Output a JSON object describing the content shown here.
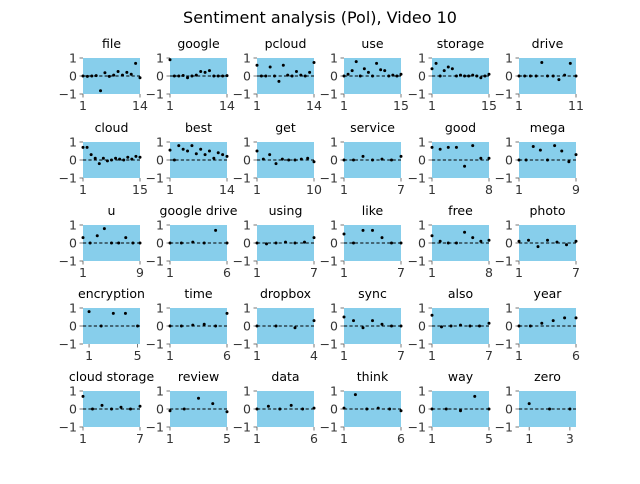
{
  "chart_data": {
    "type": "scatter",
    "title": "Sentiment analysis (Pol), Video 10",
    "grid": false,
    "facecolor": "#87ceeb",
    "point_color": "#000000",
    "reference_line": 0,
    "ylim": [
      -1,
      1
    ],
    "yticks": [
      -1,
      0,
      1
    ],
    "panels": [
      {
        "title": "file",
        "xlim": [
          1,
          14
        ],
        "xticks": [
          1,
          14
        ],
        "y": [
          0.0,
          -0.02,
          0.0,
          0.02,
          -0.82,
          0.18,
          -0.02,
          0.05,
          0.25,
          0.05,
          0.2,
          0.1,
          0.7,
          -0.1
        ]
      },
      {
        "title": "google",
        "xlim": [
          1,
          14
        ],
        "xticks": [
          1,
          14
        ],
        "y": [
          0.9,
          0.0,
          0.0,
          0.03,
          -0.1,
          0.0,
          0.05,
          0.25,
          0.2,
          0.3,
          0.0,
          0.0,
          0.0,
          0.02
        ]
      },
      {
        "title": "pcloud",
        "xlim": [
          1,
          14
        ],
        "xticks": [
          1,
          14
        ],
        "y": [
          0.6,
          0.0,
          0.0,
          0.5,
          0.0,
          -0.3,
          0.6,
          0.05,
          0.0,
          0.25,
          0.05,
          0.0,
          0.2,
          0.75
        ]
      },
      {
        "title": "use",
        "xlim": [
          1,
          15
        ],
        "xticks": [
          1,
          15
        ],
        "y": [
          0.0,
          0.1,
          0.3,
          0.8,
          0.0,
          0.4,
          0.2,
          0.0,
          0.7,
          0.35,
          0.3,
          0.0,
          0.05,
          0.0,
          0.1
        ]
      },
      {
        "title": "storage",
        "xlim": [
          1,
          15
        ],
        "xticks": [
          1,
          15
        ],
        "y": [
          0.4,
          0.7,
          0.0,
          0.3,
          0.5,
          0.4,
          0.0,
          0.05,
          0.0,
          0.0,
          0.05,
          0.0,
          -0.1,
          0.0,
          0.1
        ]
      },
      {
        "title": "drive",
        "xlim": [
          1,
          11
        ],
        "xticks": [
          1,
          11
        ],
        "y": [
          0.0,
          0.0,
          0.0,
          0.0,
          0.75,
          0.0,
          0.0,
          -0.2,
          0.05,
          0.7,
          0.0
        ]
      },
      {
        "title": "cloud",
        "xlim": [
          1,
          15
        ],
        "xticks": [
          1,
          15
        ],
        "y": [
          0.7,
          0.7,
          0.3,
          0.1,
          -0.2,
          0.1,
          -0.05,
          0.0,
          0.1,
          0.05,
          0.0,
          0.15,
          0.05,
          0.2,
          0.15
        ]
      },
      {
        "title": "best",
        "xlim": [
          1,
          14
        ],
        "xticks": [
          1,
          14
        ],
        "y": [
          0.55,
          0.0,
          0.8,
          0.6,
          0.5,
          0.8,
          0.35,
          0.6,
          0.3,
          0.5,
          0.1,
          0.4,
          0.3,
          0.2
        ]
      },
      {
        "title": "get",
        "xlim": [
          1,
          10
        ],
        "xticks": [
          1,
          10
        ],
        "y": [
          0.5,
          0.05,
          0.3,
          -0.2,
          0.05,
          0.0,
          0.0,
          0.05,
          0.1,
          -0.1
        ]
      },
      {
        "title": "service",
        "xlim": [
          1,
          7
        ],
        "xticks": [
          1,
          7
        ],
        "y": [
          0.0,
          0.0,
          0.2,
          0.0,
          0.05,
          0.0,
          0.2
        ]
      },
      {
        "title": "good",
        "xlim": [
          1,
          8
        ],
        "xticks": [
          1,
          8
        ],
        "y": [
          0.7,
          0.6,
          0.7,
          0.7,
          -0.35,
          0.8,
          0.1,
          0.1
        ]
      },
      {
        "title": "mega",
        "xlim": [
          1,
          9
        ],
        "xticks": [
          1,
          9
        ],
        "y": [
          0.0,
          0.0,
          0.75,
          0.55,
          0.0,
          0.8,
          0.5,
          -0.1,
          0.3
        ]
      },
      {
        "title": "u",
        "xlim": [
          1,
          9
        ],
        "xticks": [
          1,
          9
        ],
        "y": [
          0.3,
          0.0,
          0.4,
          0.8,
          0.0,
          0.0,
          0.3,
          0.0,
          0.0
        ]
      },
      {
        "title": "google drive",
        "xlim": [
          1,
          6
        ],
        "xticks": [
          1,
          6
        ],
        "y": [
          0.0,
          0.0,
          0.05,
          0.0,
          0.7,
          0.0
        ]
      },
      {
        "title": "using",
        "xlim": [
          1,
          7
        ],
        "xticks": [
          1,
          7
        ],
        "y": [
          0.0,
          -0.05,
          0.0,
          0.05,
          0.0,
          0.05,
          0.3
        ]
      },
      {
        "title": "like",
        "xlim": [
          1,
          7
        ],
        "xticks": [
          1,
          7
        ],
        "y": [
          0.5,
          0.0,
          0.7,
          0.7,
          0.3,
          0.0,
          0.0
        ]
      },
      {
        "title": "free",
        "xlim": [
          1,
          8
        ],
        "xticks": [
          1,
          8
        ],
        "y": [
          0.4,
          0.1,
          0.0,
          0.0,
          0.6,
          0.3,
          0.1,
          0.15
        ]
      },
      {
        "title": "photo",
        "xlim": [
          1,
          7
        ],
        "xticks": [
          1,
          7
        ],
        "y": [
          0.1,
          0.15,
          -0.2,
          0.15,
          0.05,
          -0.1,
          0.1
        ]
      },
      {
        "title": "encryption",
        "xlim": [
          0.5,
          5.2
        ],
        "xticks": [
          1,
          5
        ],
        "y": [
          0.8,
          0.0,
          0.7,
          0.7,
          0.0
        ]
      },
      {
        "title": "time",
        "xlim": [
          1,
          6
        ],
        "xticks": [
          1,
          6
        ],
        "y": [
          0.0,
          0.0,
          0.05,
          0.1,
          0.0,
          0.7
        ]
      },
      {
        "title": "dropbox",
        "xlim": [
          1,
          4
        ],
        "xticks": [
          1,
          4
        ],
        "y": [
          0.0,
          0.0,
          -0.1,
          0.3
        ]
      },
      {
        "title": "sync",
        "xlim": [
          1,
          7
        ],
        "xticks": [
          1,
          7
        ],
        "y": [
          0.5,
          0.3,
          -0.1,
          0.3,
          0.1,
          0.0,
          0.0
        ]
      },
      {
        "title": "also",
        "xlim": [
          1,
          7
        ],
        "xticks": [
          1,
          7
        ],
        "y": [
          0.6,
          -0.05,
          0.0,
          0.05,
          0.0,
          0.0,
          0.15
        ]
      },
      {
        "title": "year",
        "xlim": [
          1,
          6
        ],
        "xticks": [
          1,
          6
        ],
        "y": [
          0.0,
          0.0,
          0.15,
          0.3,
          0.45,
          0.45
        ]
      },
      {
        "title": "cloud storage",
        "xlim": [
          1,
          7
        ],
        "xticks": [
          1,
          7
        ],
        "y": [
          0.7,
          0.0,
          0.2,
          0.0,
          0.1,
          0.0,
          0.15
        ]
      },
      {
        "title": "review",
        "xlim": [
          1,
          5
        ],
        "xticks": [
          1,
          5
        ],
        "y": [
          -0.1,
          0.0,
          0.6,
          0.3,
          -0.15
        ]
      },
      {
        "title": "data",
        "xlim": [
          1,
          6
        ],
        "xticks": [
          1,
          6
        ],
        "y": [
          0.0,
          0.15,
          0.0,
          0.2,
          0.0,
          0.05
        ]
      },
      {
        "title": "think",
        "xlim": [
          1,
          6
        ],
        "xticks": [
          1,
          6
        ],
        "y": [
          0.05,
          0.8,
          0.0,
          0.05,
          0.0,
          -0.1
        ]
      },
      {
        "title": "way",
        "xlim": [
          1,
          5
        ],
        "xticks": [
          1,
          5
        ],
        "y": [
          0.0,
          0.0,
          -0.1,
          0.7,
          0.0
        ]
      },
      {
        "title": "zero",
        "xlim": [
          0.5,
          3.3
        ],
        "xticks": [
          1,
          3
        ],
        "y": [
          0.3,
          0.0,
          0.0
        ]
      }
    ]
  }
}
